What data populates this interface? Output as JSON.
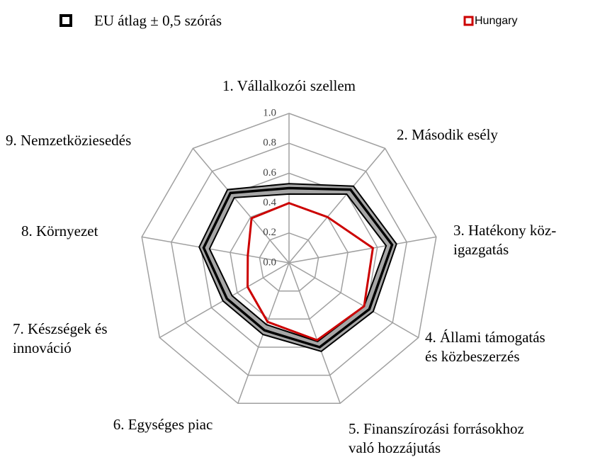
{
  "chart_data": {
    "type": "radar",
    "categories": [
      [
        "1. Vállalkozói szellem"
      ],
      [
        "2. Második esély"
      ],
      [
        "3. Hatékony köz-",
        "igazgatás"
      ],
      [
        "4. Állami támogatás",
        "és közbeszerzés"
      ],
      [
        "5. Finanszírozási forrásokhoz",
        "való hozzájutás"
      ],
      [
        "6. Egységes piac"
      ],
      [
        "7. Készségek és",
        "innováció"
      ],
      [
        "8. Környezet"
      ],
      [
        "9. Nemzetköziesedés"
      ]
    ],
    "series": [
      {
        "name": "EU átlag ± 0,5 szórás",
        "color": "#000000",
        "band_color": "#a6a6a6",
        "values": [
          0.5,
          0.64,
          0.7,
          0.62,
          0.6,
          0.48,
          0.48,
          0.58,
          0.61
        ],
        "lower": [
          0.46,
          0.6,
          0.66,
          0.58,
          0.56,
          0.44,
          0.44,
          0.54,
          0.57
        ],
        "upper": [
          0.53,
          0.67,
          0.73,
          0.65,
          0.63,
          0.51,
          0.51,
          0.61,
          0.64
        ]
      },
      {
        "name": "Hungary",
        "color": "#cc0000",
        "values": [
          0.4,
          0.4,
          0.57,
          0.58,
          0.55,
          0.42,
          0.32,
          0.28,
          0.39
        ]
      }
    ],
    "ylim": [
      0,
      1
    ],
    "yticks": [
      {
        "value": 0,
        "label": "0.0"
      },
      0.2,
      0.4,
      0.6,
      0.8,
      {
        "value": 1,
        "label": "1.0"
      }
    ],
    "grid": true
  }
}
